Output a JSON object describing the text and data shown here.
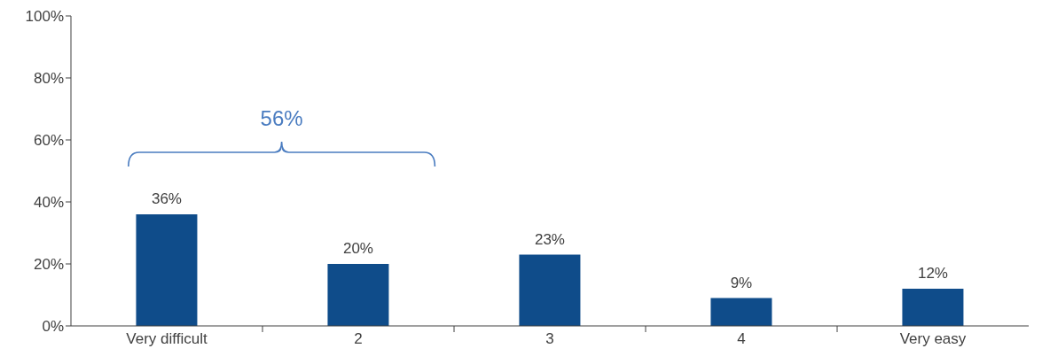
{
  "chart_data": {
    "type": "bar",
    "categories": [
      "Very difficult",
      "2",
      "3",
      "4",
      "Very easy"
    ],
    "values": [
      36,
      20,
      23,
      9,
      12
    ],
    "value_labels": [
      "36%",
      "20%",
      "23%",
      "9%",
      "12%"
    ],
    "color": "#0f4c8a",
    "ylim": [
      0,
      100
    ],
    "yticks": [
      {
        "value": 0,
        "label": "0%"
      },
      {
        "value": 20,
        "label": "20%"
      },
      {
        "value": 40,
        "label": "40%"
      },
      {
        "value": 60,
        "label": "60%"
      },
      {
        "value": 80,
        "label": "80%"
      },
      {
        "value": 100,
        "label": "100%"
      }
    ],
    "grid": false,
    "legend": false,
    "annotations": [
      "56%"
    ]
  }
}
